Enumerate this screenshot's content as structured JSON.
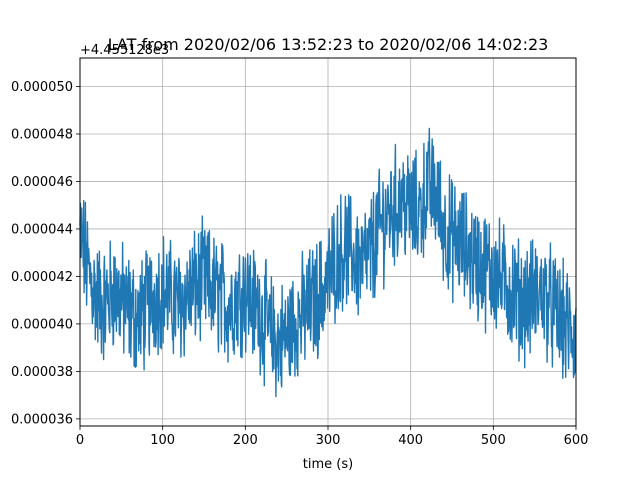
{
  "chart_data": {
    "type": "line",
    "title": "LAT from 2020/02/06 13:52:23 to 2020/02/06 14:02:23",
    "xlabel": "time (s)",
    "ylabel": "",
    "y_offset_label": "+4.455128e3",
    "xlim": [
      0,
      600
    ],
    "ylim": [
      3.57e-05,
      5.12e-05
    ],
    "grid": true,
    "x_ticks": [
      0,
      100,
      200,
      300,
      400,
      500,
      600
    ],
    "x_tick_labels": [
      "0",
      "100",
      "200",
      "300",
      "400",
      "500",
      "600"
    ],
    "y_ticks": [
      3.6e-05,
      3.8e-05,
      4e-05,
      4.2e-05,
      4.4e-05,
      4.6e-05,
      4.8e-05,
      5e-05
    ],
    "y_tick_labels": [
      "0.000036",
      "0.000038",
      "0.000040",
      "0.000042",
      "0.000044",
      "0.000046",
      "0.000048",
      "0.000050"
    ],
    "series": [
      {
        "color": "#1f77b4",
        "x": [
          0,
          10,
          20,
          30,
          40,
          50,
          60,
          70,
          80,
          90,
          100,
          110,
          120,
          130,
          140,
          150,
          160,
          170,
          180,
          190,
          200,
          210,
          220,
          230,
          240,
          250,
          260,
          270,
          280,
          290,
          300,
          310,
          320,
          330,
          340,
          350,
          360,
          370,
          380,
          390,
          400,
          410,
          420,
          430,
          440,
          450,
          460,
          470,
          480,
          490,
          500,
          510,
          520,
          530,
          540,
          550,
          560,
          570,
          580,
          590,
          600
        ],
        "y": [
          4.38e-05,
          4.22e-05,
          4.11e-05,
          4.08e-05,
          4.14e-05,
          4.1e-05,
          4.05e-05,
          4.02e-05,
          4.06e-05,
          4.12e-05,
          4.15e-05,
          4.1e-05,
          4.08e-05,
          4.12e-05,
          4.15e-05,
          4.18e-05,
          4.14e-05,
          4.11e-05,
          4.08e-05,
          4.12e-05,
          4.14e-05,
          4.08e-05,
          4.04e-05,
          3.96e-05,
          3.92e-05,
          3.95e-05,
          4.01e-05,
          4.04e-05,
          4.08e-05,
          4.12e-05,
          4.18e-05,
          4.28e-05,
          4.32e-05,
          4.29e-05,
          4.25e-05,
          4.28e-05,
          4.38e-05,
          4.45e-05,
          4.49e-05,
          4.52e-05,
          4.48e-05,
          4.46e-05,
          4.58e-05,
          4.55e-05,
          4.41e-05,
          4.36e-05,
          4.34e-05,
          4.3e-05,
          4.26e-05,
          4.23e-05,
          4.22e-05,
          4.18e-05,
          4.15e-05,
          4.11e-05,
          4.09e-05,
          4.12e-05,
          4.13e-05,
          4.07e-05,
          4.02e-05,
          3.98e-05,
          3.94e-05
        ]
      }
    ]
  }
}
